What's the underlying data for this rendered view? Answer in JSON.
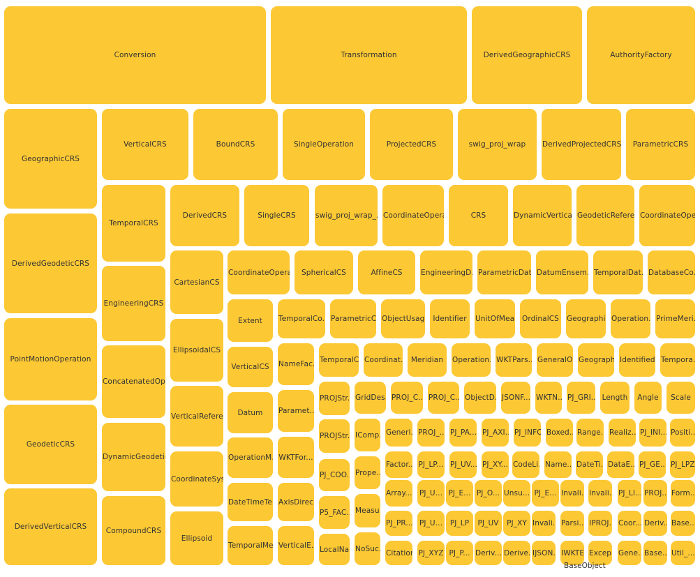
{
  "colors": {
    "tile": "#fcc834",
    "text": "#333333",
    "background": "#ffffff"
  },
  "labels": [
    "Conversion",
    "Transformation",
    "DerivedGeographicCRS",
    "AuthorityFactory",
    "GeographicCRS",
    "DerivedGeodeticCRS",
    "PointMotionOperation",
    "GeodeticCRS",
    "DerivedVerticalCRS",
    "VerticalCRS",
    "BoundCRS",
    "SingleOperation",
    "ProjectedCRS",
    "swig_proj_wrap",
    "DerivedProjectedCRS",
    "ParametricCRS",
    "TemporalCRS",
    "EngineeringCRS",
    "ConcatenatedOp...",
    "DynamicGeodetic...",
    "CompoundCRS",
    "DerivedCRS",
    "SingleCRS",
    "swig_proj_wrap_...",
    "CoordinateOpera...",
    "CRS",
    "DynamicVertical...",
    "GeodeticRefere...",
    "CoordinateOpe...",
    "CartesianCS",
    "EllipsoidalCS",
    "VerticalRefere...",
    "CoordinateSys...",
    "Ellipsoid",
    "CoordinateOpera...",
    "SphericalCS",
    "AffineCS",
    "EngineeringD...",
    "ParametricDat...",
    "DatumEnsem...",
    "TemporalDat...",
    "DatabaseCo...",
    "Extent",
    "VerticalCS",
    "Datum",
    "OperationM...",
    "DateTimeTe...",
    "TemporalMe...",
    "TemporalCo...",
    "ParametricCS",
    "ObjectUsage",
    "Identifier",
    "UnitOfMea...",
    "OrdinalCS",
    "Geographi...",
    "Operation...",
    "PrimeMeri...",
    "NameFac...",
    "Paramet...",
    "WKTFor...",
    "AxisDirec...",
    "VerticalE...",
    "TemporalCS",
    "Coordinat...",
    "Meridian",
    "Operation...",
    "WKTPars...",
    "GeneralO...",
    "Geograph...",
    "Identified...",
    "Tempora...",
    "PROJStr...",
    "PROJStr...",
    "PJ_COO...",
    "P5_FAC...",
    "LocalNa...",
    "GridDes...",
    "PROJ_C...",
    "PROJ_C...",
    "ObjectD...",
    "JSONF...",
    "WKTN...",
    "PJ_GRI...",
    "Length",
    "Angle",
    "Scale",
    "IComp...",
    "Prope...",
    "Measu...",
    "NoSuc...",
    "Generi...",
    "PROJ_...",
    "PJ_PA...",
    "PJ_AXI...",
    "PJ_INFO",
    "Boxed...",
    "Range...",
    "Realiz...",
    "PJ_INI...",
    "Positi...",
    "Factor...",
    "PJ_LP...",
    "PJ_UV...",
    "PJ_XY...",
    "CodeLi...",
    "Name...",
    "DateTi...",
    "DataE...",
    "PJ_GE...",
    "PJ_LPZ",
    "Array...",
    "PJ_U...",
    "PJ_E...",
    "PJ_O...",
    "Unsu...",
    "PJ_E...",
    "Invali...",
    "Invali...",
    "PJ_LI...",
    "PROJ...",
    "Form...",
    "PJ_PR...",
    "PJ_U...",
    "PJ_LP",
    "PJ_UV",
    "PJ_XY",
    "Invali...",
    "Parsi...",
    "IPROJ...",
    "Coor...",
    "Deriv...",
    "Base...",
    "Citation",
    "PJ_XYZ",
    "PJ_P...",
    "Deriv...",
    "Derive...",
    "IJSON...",
    "IWKTE...",
    "Excep...",
    "Gene...",
    "Base...",
    "Util_..."
  ],
  "caption": "BaseObject"
}
